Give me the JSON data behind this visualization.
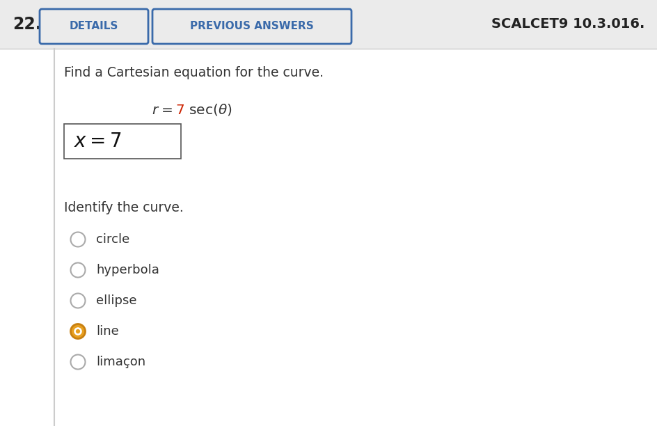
{
  "problem_number": "22.",
  "button1_text": "DETAILS",
  "button2_text": "PREVIOUS ANSWERS",
  "header_right": "SCALCET9 10.3.016.",
  "question_text": "Find a Cartesian equation for the curve.",
  "equation_number": "7",
  "answer_box_text": "x = 7",
  "identify_label": "Identify the curve.",
  "radio_options": [
    "circle",
    "hyperbola",
    "ellipse",
    "line",
    "limaçon"
  ],
  "selected_index": 3,
  "bg_color_header": "#ebebeb",
  "bg_color_body": "#ffffff",
  "button_border_color": "#3a6aaa",
  "button_text_color": "#3a6aaa",
  "header_right_color": "#222222",
  "body_text_color": "#333333",
  "equation_number_color": "#cc2200",
  "answer_text_color": "#111111",
  "radio_selected_fill": "#e8a020",
  "radio_selected_border": "#c88010",
  "radio_unselected_fill": "#ffffff",
  "radio_unselected_border": "#aaaaaa",
  "separator_color": "#cccccc",
  "left_bar_color": "#cccccc",
  "fig_width": 9.44,
  "fig_height": 6.12,
  "dpi": 100
}
